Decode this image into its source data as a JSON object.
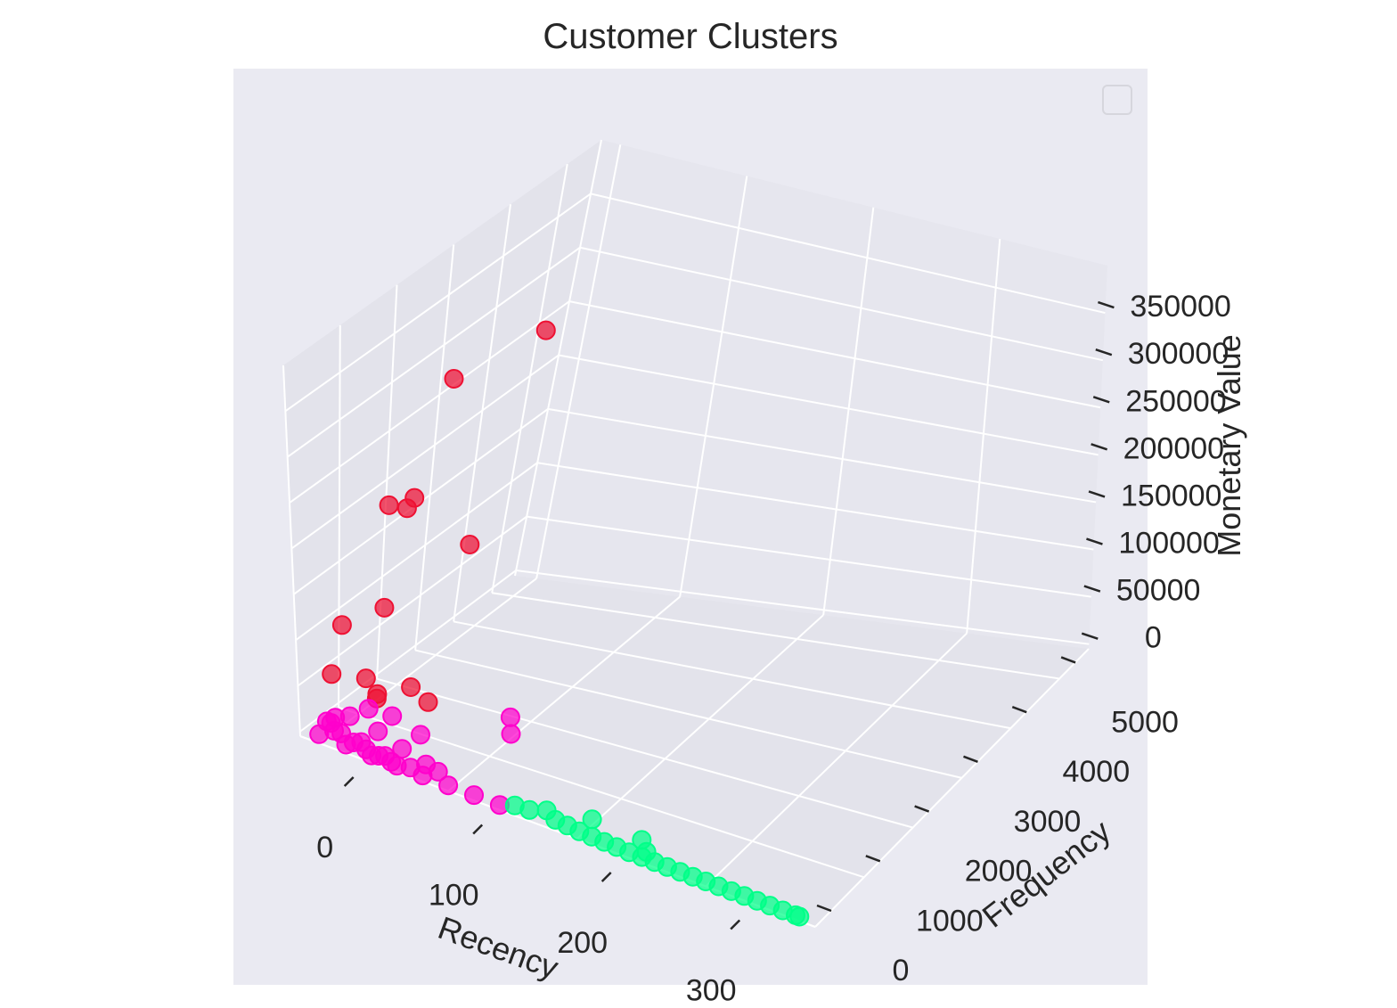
{
  "chart_data": {
    "type": "scatter",
    "projection": "3d",
    "title": "Customer Clusters",
    "xlabel": "Recency",
    "ylabel": "Frequency",
    "zlabel": "Monetary Value",
    "xlim": [
      -15,
      385
    ],
    "ylim": [
      0,
      5600
    ],
    "zlim": [
      -5000,
      400000
    ],
    "xticks": [
      "0",
      "100",
      "200",
      "300"
    ],
    "yticks": [
      "0",
      "1000",
      "2000",
      "3000",
      "4000",
      "5000"
    ],
    "zticks": [
      "0",
      "50000",
      "100000",
      "150000",
      "200000",
      "250000",
      "300000",
      "350000"
    ],
    "grid": true,
    "legend": {
      "visible": true,
      "placement": "top-right",
      "entries": []
    },
    "colors": {
      "background": "#eaeaf2",
      "grid": "#ffffff",
      "cluster_high_value": "#ee1133",
      "cluster_active": "#ff00cc",
      "cluster_lapsed": "#00ff88"
    },
    "series": [
      {
        "color": "#ee1133",
        "points": [
          [
            2,
            2800,
            280000
          ],
          [
            2,
            4650,
            260000
          ],
          [
            5,
            1500,
            200000
          ],
          [
            10,
            1750,
            190000
          ],
          [
            3,
            2100,
            185000
          ],
          [
            30,
            2600,
            130000
          ],
          [
            15,
            200,
            125000
          ],
          [
            20,
            1000,
            117000
          ],
          [
            12,
            5,
            77000
          ],
          [
            40,
            220,
            62000
          ],
          [
            22,
            500,
            60000
          ],
          [
            70,
            500,
            58000
          ],
          [
            50,
            700,
            57000
          ],
          [
            35,
            350,
            50000
          ]
        ]
      },
      {
        "color": "#ff00cc",
        "points": [
          [
            100,
            1500,
            18000
          ],
          [
            110,
            1200,
            16000
          ],
          [
            70,
            300,
            30000
          ],
          [
            50,
            250,
            42000
          ],
          [
            30,
            300,
            38000
          ],
          [
            20,
            150,
            30000
          ],
          [
            10,
            100,
            25000
          ],
          [
            5,
            50,
            20000
          ],
          [
            40,
            200,
            22000
          ],
          [
            60,
            150,
            15000
          ],
          [
            80,
            100,
            10000
          ],
          [
            90,
            80,
            8000
          ],
          [
            0,
            0,
            5000
          ],
          [
            20,
            30,
            3000
          ],
          [
            40,
            20,
            2000
          ],
          [
            60,
            10,
            1500
          ],
          [
            80,
            10,
            1200
          ],
          [
            100,
            5,
            1000
          ],
          [
            120,
            5,
            800
          ],
          [
            140,
            5,
            500
          ],
          [
            10,
            60,
            12000
          ],
          [
            30,
            90,
            9000
          ],
          [
            50,
            40,
            6000
          ],
          [
            70,
            30,
            4000
          ],
          [
            5,
            150,
            15000
          ],
          [
            15,
            80,
            11000
          ],
          [
            25,
            60,
            7000
          ],
          [
            35,
            50,
            5000
          ],
          [
            45,
            40,
            3500
          ],
          [
            55,
            30,
            2500
          ]
        ]
      },
      {
        "color": "#00ff88",
        "points": [
          [
            150,
            60,
            3000
          ],
          [
            160,
            100,
            1500
          ],
          [
            170,
            200,
            2000
          ],
          [
            180,
            100,
            1000
          ],
          [
            190,
            80,
            800
          ],
          [
            200,
            60,
            500
          ],
          [
            210,
            50,
            400
          ],
          [
            220,
            40,
            300
          ],
          [
            230,
            30,
            300
          ],
          [
            240,
            20,
            250
          ],
          [
            250,
            20,
            200
          ],
          [
            260,
            15,
            200
          ],
          [
            270,
            10,
            150
          ],
          [
            280,
            10,
            150
          ],
          [
            290,
            8,
            100
          ],
          [
            300,
            8,
            100
          ],
          [
            310,
            6,
            100
          ],
          [
            320,
            5,
            80
          ],
          [
            330,
            5,
            80
          ],
          [
            340,
            4,
            60
          ],
          [
            350,
            3,
            50
          ],
          [
            360,
            3,
            50
          ],
          [
            370,
            2,
            40
          ],
          [
            373,
            2,
            30
          ],
          [
            200,
            350,
            1000
          ],
          [
            240,
            300,
            800
          ],
          [
            250,
            120,
            1200
          ]
        ]
      }
    ]
  }
}
